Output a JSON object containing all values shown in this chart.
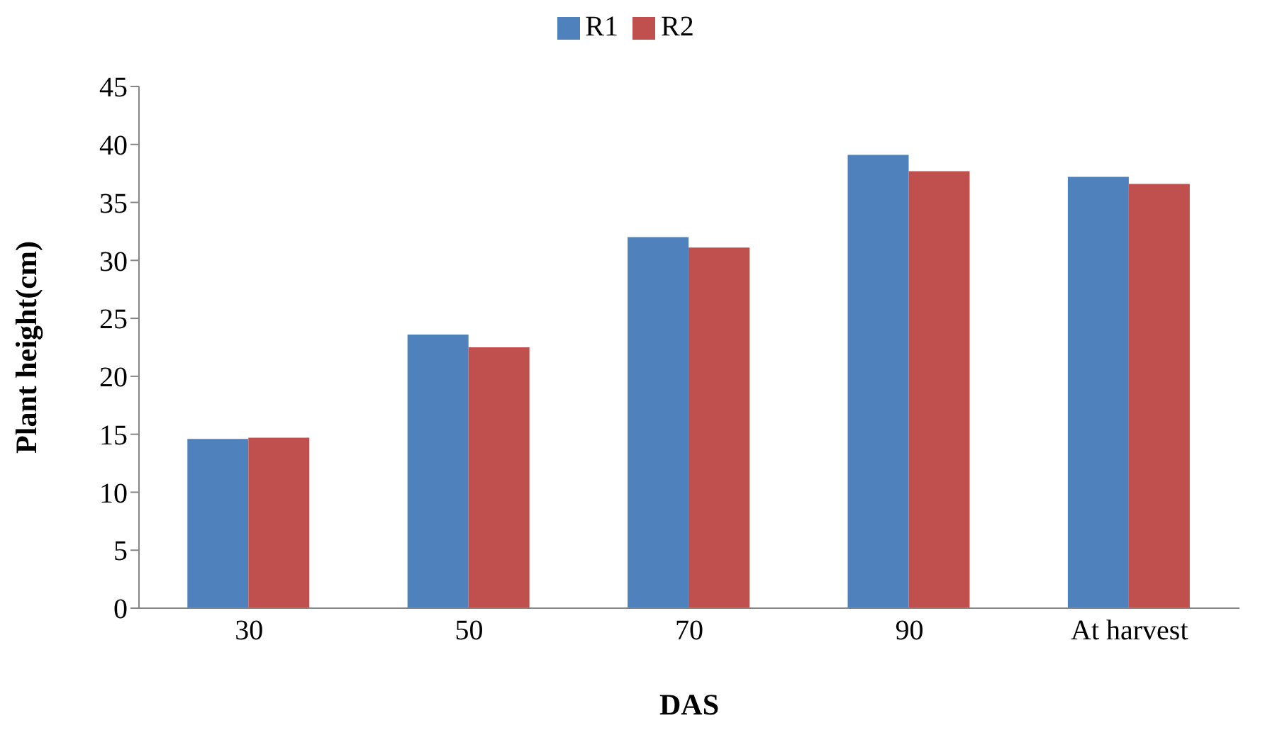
{
  "chart_data": {
    "type": "bar",
    "xlabel": "DAS",
    "ylabel": "Plant height(cm)",
    "categories": [
      "30",
      "50",
      "70",
      "90",
      "At harvest"
    ],
    "series": [
      {
        "name": "R1",
        "color": "#4f81bd",
        "values": [
          14.6,
          23.6,
          32.0,
          39.1,
          37.2
        ]
      },
      {
        "name": "R2",
        "color": "#c0504d",
        "values": [
          14.7,
          22.5,
          31.1,
          37.7,
          36.6
        ]
      }
    ],
    "ylim": [
      0,
      45
    ],
    "yticks": [
      0,
      5,
      10,
      15,
      20,
      25,
      30,
      35,
      40,
      45
    ],
    "grid": false,
    "legend": "top"
  }
}
